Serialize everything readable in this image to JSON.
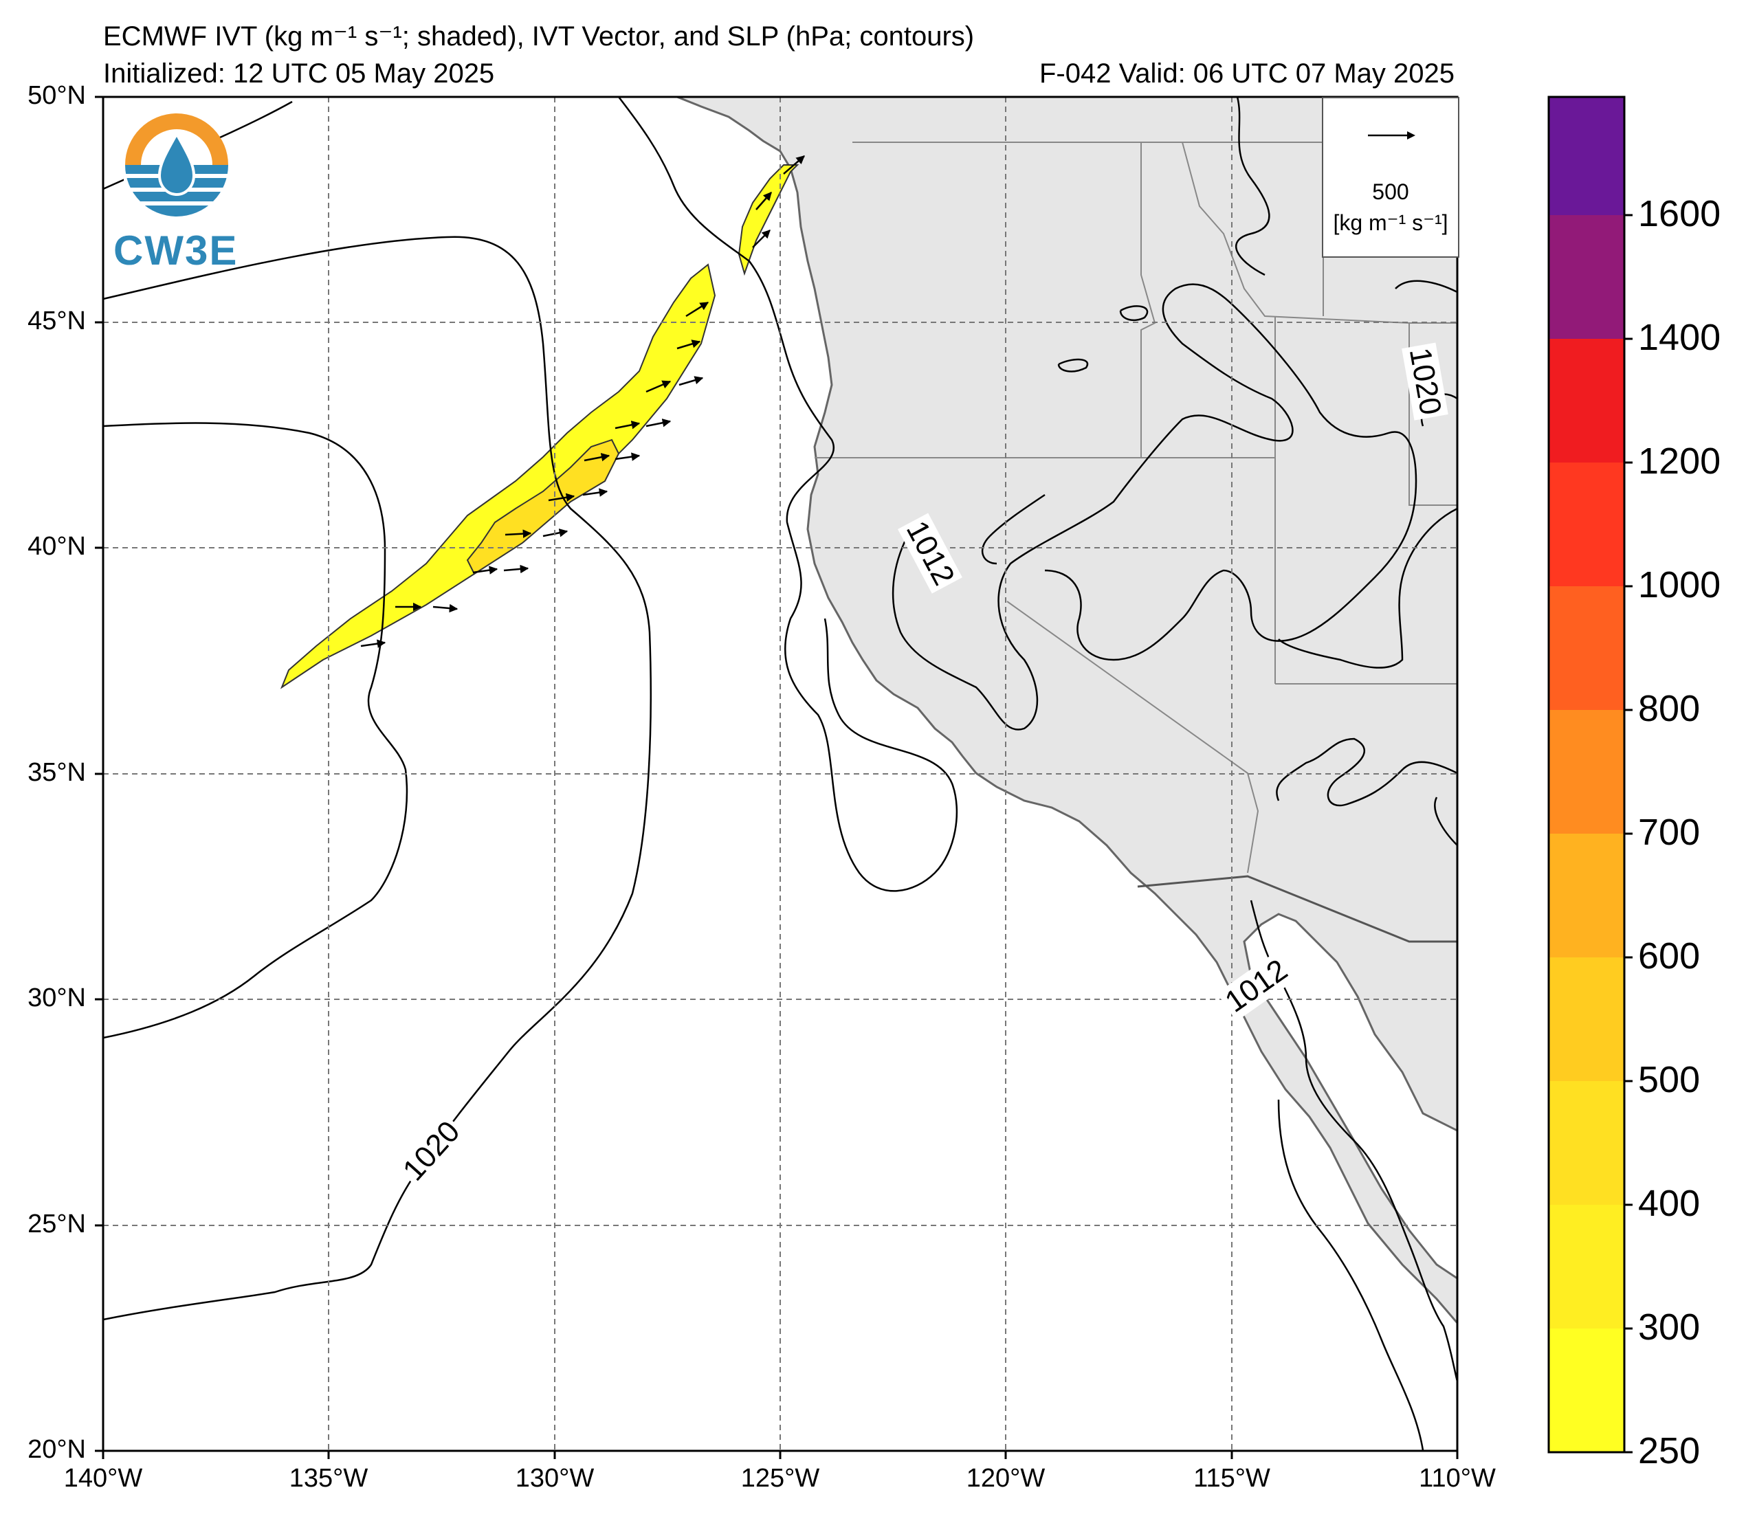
{
  "header": {
    "title_line1": "ECMWF IVT (kg m⁻¹ s⁻¹; shaded), IVT Vector, and SLP (hPa; contours)",
    "initialized": "Initialized: 12 UTC 05 May 2025",
    "valid": "F-042  Valid: 06 UTC 07 May 2025"
  },
  "logo": {
    "text": "CW3E",
    "icon": "cw3e-water-drop-logo-icon",
    "colors": {
      "orange": "#f39a2b",
      "blue": "#2e88b8"
    }
  },
  "map": {
    "lat_ticks": [
      "50°N",
      "45°N",
      "40°N",
      "35°N",
      "30°N",
      "25°N",
      "20°N"
    ],
    "lon_ticks": [
      "140°W",
      "135°W",
      "130°W",
      "125°W",
      "120°W",
      "115°W",
      "110°W"
    ],
    "extent": {
      "lon": [
        -140,
        -110
      ],
      "lat": [
        20,
        50
      ]
    },
    "land_color": "#e6e6e6",
    "grid": "on"
  },
  "vector_legend": {
    "value": "500",
    "unit": "[kg m⁻¹ s⁻¹]"
  },
  "contour_labels": [
    "1012",
    "1012",
    "1020",
    "1020"
  ],
  "colorbar": {
    "ticks": [
      "250",
      "300",
      "400",
      "500",
      "600",
      "700",
      "800",
      "1000",
      "1200",
      "1400",
      "1600"
    ],
    "colors": [
      "#ffff22",
      "#ffee22",
      "#ffe022",
      "#ffcc20",
      "#ffb220",
      "#ff8c20",
      "#ff6020",
      "#ff3820",
      "#f01c20",
      "#c81a40",
      "#921a78",
      "#6a1898"
    ]
  }
}
